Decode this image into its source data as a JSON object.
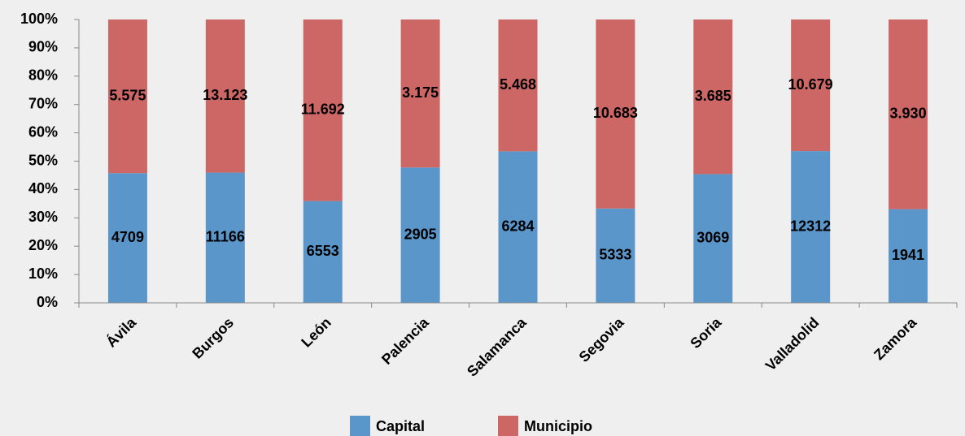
{
  "chart_data": {
    "type": "bar",
    "stack": "percent",
    "categories": [
      "Ávila",
      "Burgos",
      "León",
      "Palencia",
      "Salamanca",
      "Segovia",
      "Soria",
      "Valladolid",
      "Zamora"
    ],
    "series": [
      {
        "name": "Capital",
        "color": "#5b96cb",
        "values": [
          4709,
          11166,
          6553,
          2905,
          6284,
          5333,
          3069,
          12312,
          1941
        ]
      },
      {
        "name": "Municipio",
        "color": "#cc6766",
        "values": [
          5575,
          13123,
          11692,
          3175,
          5468,
          10683,
          3685,
          10679,
          3930
        ],
        "value_labels": [
          "5.575",
          "13.123",
          "11.692",
          "3.175",
          "5.468",
          "10.683",
          "3.685",
          "10.679",
          "3.930"
        ]
      }
    ],
    "ylim": [
      0,
      100
    ],
    "yticks": [
      {
        "value": 0,
        "label": "0%"
      },
      {
        "value": 10,
        "label": "10%"
      },
      {
        "value": 20,
        "label": "20%"
      },
      {
        "value": 30,
        "label": "30%"
      },
      {
        "value": 40,
        "label": "40%"
      },
      {
        "value": 50,
        "label": "50%"
      },
      {
        "value": 60,
        "label": "60%"
      },
      {
        "value": 70,
        "label": "70%"
      },
      {
        "value": 80,
        "label": "80%"
      },
      {
        "value": 90,
        "label": "90%"
      },
      {
        "value": 100,
        "label": "100%"
      }
    ],
    "legend": "bottom"
  }
}
